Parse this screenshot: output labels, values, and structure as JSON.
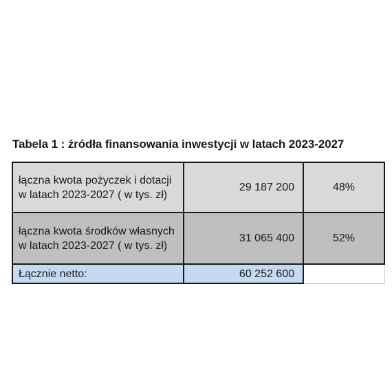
{
  "caption": "Tabela 1 : źródła finansowania inwestycji  w latach  2023-2027",
  "rows": [
    {
      "label": "łączna kwota pożyczek i dotacji w latach  2023-2027 ( w tys. zł)",
      "value": "29 187 200",
      "percent": "48%"
    },
    {
      "label": "łączna kwota środków własnych w latach  2023-2027 ( w tys. zł)",
      "value": "31 065 400",
      "percent": "52%"
    },
    {
      "label": "Łącznie netto:",
      "value": "60 252 600",
      "percent": ""
    }
  ],
  "colors": {
    "row1_bg": "#d9d9d9",
    "row2_bg": "#bfbfbf",
    "total_bg": "#c5d9f1"
  }
}
